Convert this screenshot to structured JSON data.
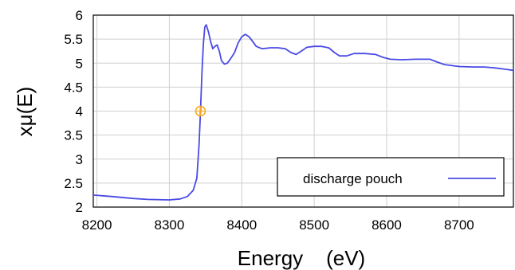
{
  "chart_data": {
    "type": "line",
    "xlabel": "Energy    (eV)",
    "ylabel": "xμ(E)",
    "xlim": [
      8195,
      8775
    ],
    "ylim": [
      2,
      6
    ],
    "xticks": [
      8200,
      8300,
      8400,
      8500,
      8600,
      8700
    ],
    "yticks": [
      2,
      2.5,
      3,
      3.5,
      4,
      4.5,
      5,
      5.5,
      6
    ],
    "grid": true,
    "legend_position": "bottom-right",
    "series": [
      {
        "name": "discharge pouch",
        "color": "#4a4ae6",
        "x": [
          8195,
          8220,
          8250,
          8270,
          8300,
          8315,
          8325,
          8333,
          8338,
          8341,
          8343,
          8345,
          8347,
          8349,
          8351,
          8354,
          8357,
          8360,
          8363,
          8366,
          8369,
          8372,
          8376,
          8380,
          8385,
          8390,
          8395,
          8400,
          8405,
          8410,
          8415,
          8420,
          8428,
          8440,
          8450,
          8460,
          8468,
          8475,
          8482,
          8490,
          8500,
          8510,
          8520,
          8528,
          8535,
          8545,
          8555,
          8570,
          8585,
          8595,
          8605,
          8620,
          8640,
          8660,
          8670,
          8680,
          8700,
          8720,
          8735,
          8750,
          8760,
          8775
        ],
        "y": [
          2.25,
          2.22,
          2.18,
          2.16,
          2.15,
          2.17,
          2.22,
          2.35,
          2.6,
          3.3,
          4.0,
          4.8,
          5.4,
          5.75,
          5.8,
          5.65,
          5.45,
          5.3,
          5.35,
          5.38,
          5.25,
          5.05,
          4.98,
          5.0,
          5.1,
          5.22,
          5.42,
          5.55,
          5.6,
          5.55,
          5.45,
          5.35,
          5.3,
          5.32,
          5.32,
          5.3,
          5.22,
          5.18,
          5.25,
          5.33,
          5.35,
          5.35,
          5.32,
          5.22,
          5.15,
          5.15,
          5.2,
          5.2,
          5.18,
          5.12,
          5.08,
          5.07,
          5.08,
          5.08,
          5.02,
          4.97,
          4.93,
          4.92,
          4.92,
          4.9,
          4.88,
          4.85
        ]
      }
    ],
    "marker": {
      "x": 8343,
      "y": 4.0,
      "color": "#f5a623"
    }
  }
}
